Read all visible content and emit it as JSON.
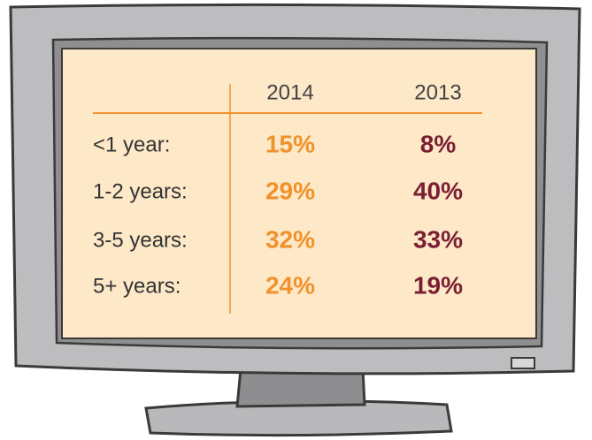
{
  "table": {
    "columns": [
      "2014",
      "2013"
    ],
    "rows": [
      {
        "label": "<1 year:",
        "values": [
          "15%",
          "8%"
        ]
      },
      {
        "label": "1-2 years:",
        "values": [
          "29%",
          "40%"
        ]
      },
      {
        "label": "3-5 years:",
        "values": [
          "32%",
          "33%"
        ]
      },
      {
        "label": "5+ years:",
        "values": [
          "24%",
          "19%"
        ]
      }
    ]
  }
}
